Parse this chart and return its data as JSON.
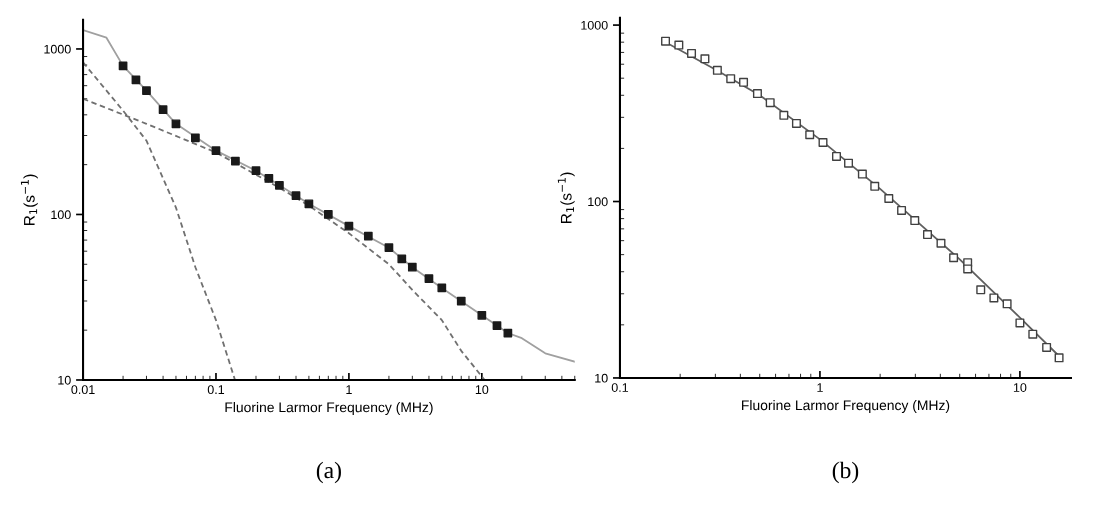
{
  "chart_data": [
    {
      "type": "scatter",
      "xlabel": "Fluorine Larmor Frequency (MHz)",
      "ylabel": "R$_{1}$(s$^{−1}$)",
      "log": "xy",
      "xlim": [
        0.01,
        50
      ],
      "ylim": [
        10,
        1500
      ],
      "xticks": [
        0.01,
        0.1,
        1,
        10
      ],
      "yticks": [
        10,
        100,
        1000
      ],
      "grid": false,
      "legend": false,
      "annotations": [
        "(a)"
      ],
      "series": [
        {
          "type": "line",
          "color": "#a0a0a0",
          "line_style": "solid",
          "marker": "none",
          "x": [
            0.01,
            0.015,
            0.02,
            0.03,
            0.05,
            0.1,
            0.2,
            0.3,
            0.5,
            1,
            2,
            3,
            5,
            10,
            15.7,
            20,
            30,
            50
          ],
          "values": [
            1300,
            1170,
            790,
            560,
            353,
            243,
            184,
            150,
            116,
            85,
            63,
            48,
            36,
            24.6,
            19.2,
            17.9,
            14.5,
            12.9
          ]
        },
        {
          "type": "line",
          "color": "#707070",
          "line_style": "dashed",
          "marker": "none",
          "x": [
            0.01,
            0.02,
            0.03,
            0.05,
            0.07,
            0.1,
            0.139
          ],
          "values": [
            830,
            424,
            279,
            110,
            48,
            23,
            10
          ]
        },
        {
          "type": "line",
          "color": "#707070",
          "line_style": "dashed",
          "marker": "none",
          "x": [
            0.01,
            0.03,
            0.1,
            0.3,
            0.5,
            1,
            2,
            3,
            5,
            7,
            10.5
          ],
          "values": [
            500,
            353,
            237,
            145,
            113,
            77,
            50,
            35,
            23,
            15,
            10
          ]
        },
        {
          "color": "#1a1a1a",
          "marker": "square",
          "x": [
            0.02,
            0.025,
            0.03,
            0.04,
            0.05,
            0.07,
            0.1,
            0.14,
            0.2,
            0.25,
            0.3,
            0.4,
            0.5,
            0.7,
            1,
            1.4,
            2,
            2.5,
            3,
            4,
            5,
            7,
            10,
            13,
            15.7
          ],
          "values": [
            790,
            650,
            560,
            430,
            353,
            290,
            243,
            210,
            184,
            165,
            150,
            130,
            116,
            100,
            85,
            74,
            63,
            54,
            48,
            41,
            36,
            30,
            24.6,
            21.3,
            19.2
          ]
        }
      ]
    },
    {
      "type": "scatter",
      "xlabel": "Fluorine Larmor Frequency (MHz)",
      "ylabel": "R$_{1}$(s$^{−1}$)",
      "log": "xy",
      "xlim": [
        0.1,
        18
      ],
      "ylim": [
        10,
        1100
      ],
      "xticks": [
        0.1,
        1,
        10
      ],
      "yticks": [
        10,
        100,
        1000
      ],
      "grid": false,
      "legend": false,
      "annotations": [
        "(b)"
      ],
      "series": [
        {
          "type": "line",
          "color": "#606060",
          "line_style": "solid",
          "marker": "none",
          "x": [
            0.169,
            0.3,
            0.5,
            1,
            2,
            5,
            10,
            15.7
          ],
          "values": [
            800,
            560,
            400,
            225,
            118,
            47,
            22,
            13.3
          ]
        },
        {
          "color": "#404040",
          "marker": "square",
          "x": [
            0.169,
            0.197,
            0.228,
            0.266,
            0.307,
            0.358,
            0.415,
            0.487,
            0.564,
            0.66,
            0.763,
            0.889,
            1.036,
            1.21,
            1.39,
            1.63,
            1.88,
            2.21,
            2.56,
            2.98,
            3.45,
            4.03,
            4.66,
            5.48,
            5.48,
            6.37,
            7.41,
            8.63,
            10,
            11.6,
            13.6,
            15.7
          ],
          "values": [
            811,
            770,
            691,
            644,
            554,
            497,
            474,
            409,
            363,
            308,
            277,
            239,
            216,
            180,
            165,
            143,
            122,
            104,
            89,
            78,
            65,
            58,
            48,
            45,
            41.5,
            31.6,
            28.4,
            26.3,
            20.5,
            17.7,
            14.9,
            13.0
          ]
        }
      ]
    }
  ]
}
